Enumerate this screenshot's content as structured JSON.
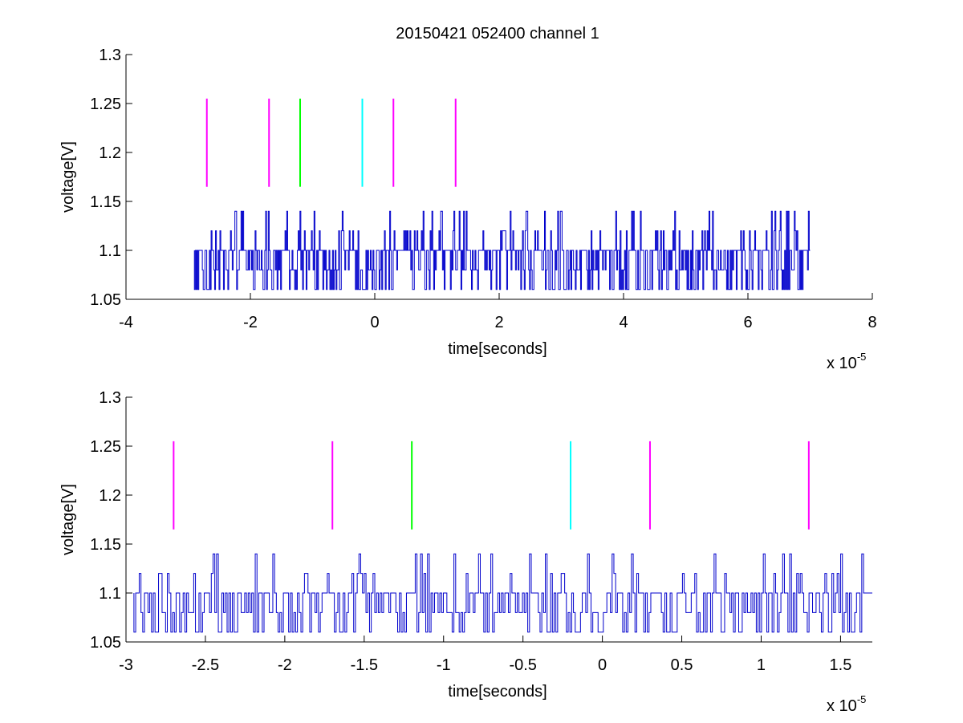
{
  "figure_title": "20150421 052400 channel 1",
  "chart_data": [
    {
      "type": "line",
      "title": "20150421 052400 channel 1",
      "xlabel": "time[seconds]",
      "ylabel": "voltage[V]",
      "x_multiplier_label": "x 10",
      "x_multiplier_exponent": "-5",
      "xlim": [
        -4e-05,
        8e-05
      ],
      "ylim": [
        1.05,
        1.3
      ],
      "x_tick_labels": [
        "-4",
        "-2",
        "0",
        "2",
        "4",
        "6",
        "8"
      ],
      "y_tick_labels": [
        "1.05",
        "1.1",
        "1.15",
        "1.2",
        "1.25",
        "1.3"
      ],
      "grid": false,
      "series": [
        {
          "style": "step trace",
          "color": "#0000cc",
          "x_range": [
            -2.9e-05,
            7e-05
          ],
          "levels": [
            1.06,
            1.08,
            1.1,
            1.12,
            1.14
          ],
          "baseline": 1.1
        }
      ],
      "markers": [
        {
          "x": -2.7e-05,
          "y": [
            1.165,
            1.255
          ],
          "color": "#ff00ff"
        },
        {
          "x": -1.7e-05,
          "y": [
            1.165,
            1.255
          ],
          "color": "#ff00ff"
        },
        {
          "x": -1.2e-05,
          "y": [
            1.165,
            1.255
          ],
          "color": "#00ff00"
        },
        {
          "x": -2e-06,
          "y": [
            1.165,
            1.255
          ],
          "color": "#00ffff"
        },
        {
          "x": 3e-06,
          "y": [
            1.165,
            1.255
          ],
          "color": "#ff00ff"
        },
        {
          "x": 1.3e-05,
          "y": [
            1.165,
            1.255
          ],
          "color": "#ff00ff"
        }
      ]
    },
    {
      "type": "line",
      "title": "",
      "xlabel": "time[seconds]",
      "ylabel": "voltage[V]",
      "x_multiplier_label": "x 10",
      "x_multiplier_exponent": "-5",
      "xlim": [
        -3e-05,
        1.7e-05
      ],
      "ylim": [
        1.05,
        1.3
      ],
      "x_tick_labels": [
        "-3",
        "-2.5",
        "-2",
        "-1.5",
        "-1",
        "-0.5",
        "0",
        "0.5",
        "1",
        "1.5"
      ],
      "y_tick_labels": [
        "1.05",
        "1.1",
        "1.15",
        "1.2",
        "1.25",
        "1.3"
      ],
      "grid": false,
      "series": [
        {
          "style": "step trace",
          "color": "#0000cc",
          "x_range": [
            -2.95e-05,
            1.7e-05
          ],
          "levels": [
            1.06,
            1.08,
            1.1,
            1.12,
            1.14
          ],
          "baseline": 1.1
        }
      ],
      "markers": [
        {
          "x": -2.7e-05,
          "y": [
            1.165,
            1.255
          ],
          "color": "#ff00ff"
        },
        {
          "x": -1.7e-05,
          "y": [
            1.165,
            1.255
          ],
          "color": "#ff00ff"
        },
        {
          "x": -1.2e-05,
          "y": [
            1.165,
            1.255
          ],
          "color": "#00ff00"
        },
        {
          "x": -2e-06,
          "y": [
            1.165,
            1.255
          ],
          "color": "#00ffff"
        },
        {
          "x": 3e-06,
          "y": [
            1.165,
            1.255
          ],
          "color": "#ff00ff"
        },
        {
          "x": 1.3e-05,
          "y": [
            1.165,
            1.255
          ],
          "color": "#ff00ff"
        }
      ]
    }
  ]
}
